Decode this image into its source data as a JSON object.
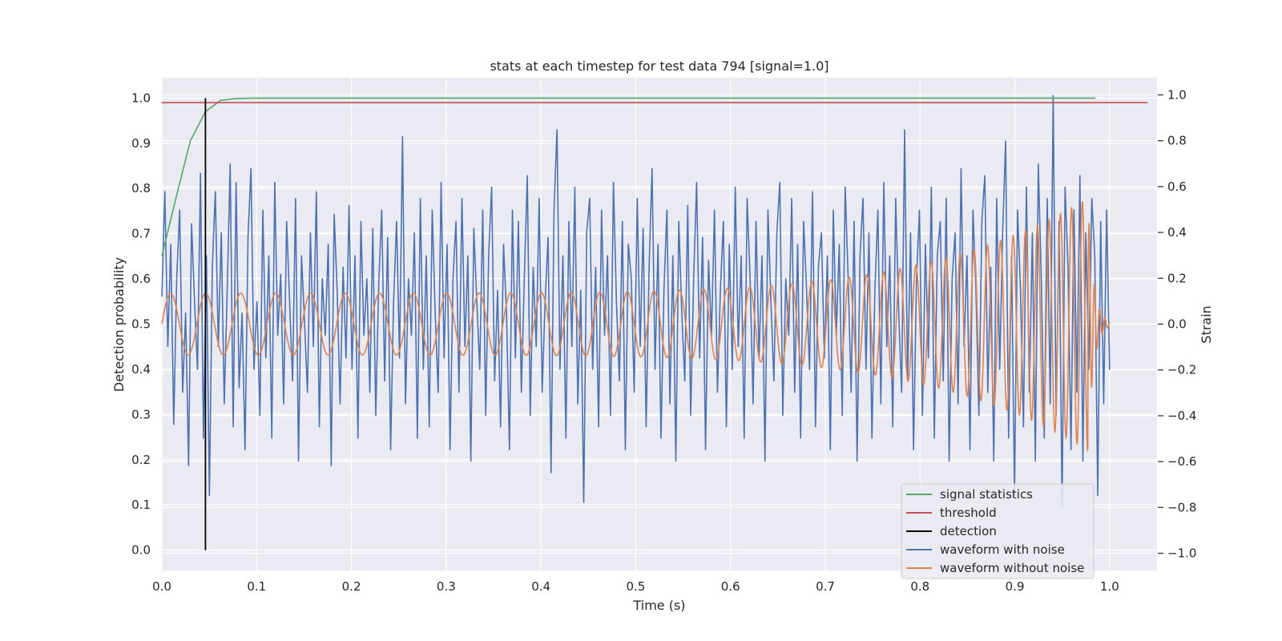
{
  "chart_data": {
    "type": "line",
    "title": "stats at each timestep for test data 794 [signal=1.0]",
    "xlabel": "Time (s)",
    "ylabel": "Detection probability",
    "y2label": "Strain",
    "xlim": [
      0.0,
      1.05
    ],
    "ylim": [
      -0.045,
      1.045
    ],
    "y2lim": [
      -1.075,
      1.075
    ],
    "grid": true,
    "legend_position": "lower right",
    "x_ticks": [
      "0.0",
      "0.1",
      "0.2",
      "0.3",
      "0.4",
      "0.5",
      "0.6",
      "0.7",
      "0.8",
      "0.9",
      "1.0"
    ],
    "y_ticks": [
      "0.0",
      "0.1",
      "0.2",
      "0.3",
      "0.4",
      "0.5",
      "0.6",
      "0.7",
      "0.8",
      "0.9",
      "1.0"
    ],
    "y2_ticks": [
      "−1.0",
      "−0.8",
      "−0.6",
      "−0.4",
      "−0.2",
      "0.0",
      "0.2",
      "0.4",
      "0.6",
      "0.8",
      "1.0"
    ],
    "series": [
      {
        "name": "signal statistics",
        "axis": "left",
        "color": "#55a868",
        "x": [
          0.0,
          0.015,
          0.03,
          0.046,
          0.062,
          0.078,
          0.1,
          0.2,
          0.3,
          0.4,
          0.5,
          0.6,
          0.7,
          0.8,
          0.9,
          0.985
        ],
        "y": [
          0.65,
          0.78,
          0.905,
          0.97,
          0.995,
          0.999,
          1.0,
          1.0,
          1.0,
          1.0,
          1.0,
          1.0,
          1.0,
          1.0,
          1.0,
          1.0
        ]
      },
      {
        "name": "threshold",
        "axis": "left",
        "color": "#c44e52",
        "x": [
          0.0,
          1.04
        ],
        "y": [
          0.99,
          0.99
        ]
      },
      {
        "name": "detection",
        "axis": "left",
        "color": "#000000",
        "x": [
          0.046,
          0.046
        ],
        "y": [
          0.0,
          1.0
        ]
      },
      {
        "name": "waveform with noise",
        "axis": "right",
        "color": "#4c72b0",
        "x_start": 0.0,
        "x_end": 1.0,
        "samples": 320,
        "amplitude_range": [
          -0.82,
          1.0
        ],
        "y": [
          0.12,
          0.58,
          -0.1,
          0.35,
          -0.44,
          0.2,
          0.5,
          -0.3,
          0.05,
          -0.62,
          0.44,
          0.1,
          -0.2,
          0.66,
          -0.5,
          0.3,
          -0.75,
          0.25,
          0.58,
          -0.1,
          0.4,
          -0.35,
          0.15,
          0.7,
          -0.45,
          0.62,
          -0.28,
          0.05,
          -0.55,
          0.38,
          0.68,
          -0.2,
          0.1,
          -0.4,
          0.5,
          -0.15,
          0.3,
          -0.5,
          0.62,
          -0.05,
          0.22,
          -0.35,
          0.45,
          0.1,
          -0.25,
          0.55,
          -0.6,
          0.3,
          0.02,
          -0.3,
          0.4,
          -0.1,
          0.58,
          -0.45,
          0.2,
          -0.05,
          0.35,
          -0.62,
          0.48,
          0.15,
          -0.35,
          0.25,
          -0.15,
          0.52,
          -0.2,
          0.3,
          -0.5,
          0.45,
          -0.05,
          0.2,
          -0.3,
          0.42,
          -0.4,
          0.18,
          0.5,
          -0.25,
          0.38,
          -0.55,
          0.1,
          0.45,
          -0.15,
          0.82,
          -0.35,
          0.2,
          -0.05,
          0.4,
          -0.5,
          0.55,
          -0.2,
          0.3,
          -0.45,
          0.5,
          0.05,
          -0.3,
          0.62,
          -0.15,
          0.35,
          -0.55,
          0.2,
          0.45,
          -0.3,
          0.55,
          -0.1,
          0.3,
          -0.6,
          0.42,
          0.1,
          -0.2,
          0.5,
          -0.4,
          0.3,
          0.6,
          -0.25,
          0.15,
          -0.45,
          0.35,
          0.05,
          -0.55,
          0.5,
          -0.15,
          0.45,
          -0.3,
          0.2,
          0.65,
          -0.4,
          0.25,
          -0.1,
          0.55,
          -0.3,
          0.1,
          0.38,
          -0.65,
          0.5,
          0.85,
          -0.2,
          0.3,
          -0.5,
          0.45,
          -0.1,
          0.6,
          -0.35,
          0.15,
          -0.78,
          0.4,
          0.55,
          -0.2,
          0.25,
          -0.45,
          0.5,
          -0.05,
          0.3,
          -0.4,
          0.62,
          0.1,
          -0.25,
          0.45,
          -0.55,
          0.35,
          0.2,
          -0.3,
          0.55,
          -0.1,
          0.42,
          -0.45,
          0.25,
          0.68,
          -0.2,
          0.35,
          -0.5,
          0.15,
          0.5,
          -0.35,
          0.3,
          -0.6,
          0.45,
          0.05,
          -0.25,
          0.52,
          -0.4,
          0.2,
          0.62,
          -0.15,
          0.38,
          -0.55,
          0.28,
          -0.05,
          0.5,
          -0.3,
          0.15,
          0.45,
          -0.45,
          0.35,
          -0.2,
          0.6,
          -0.1,
          0.3,
          -0.5,
          0.55,
          0.2,
          -0.35,
          0.45,
          -0.15,
          0.3,
          -0.6,
          0.5,
          0.1,
          -0.25,
          0.4,
          0.62,
          -0.4,
          0.2,
          -0.05,
          0.55,
          -0.3,
          0.35,
          -0.5,
          0.45,
          0.15,
          -0.2,
          0.58,
          -0.45,
          0.25,
          0.4,
          -0.15,
          0.3,
          -0.55,
          0.5,
          -0.05,
          0.35,
          -0.4,
          0.6,
          0.2,
          -0.3,
          0.45,
          -0.6,
          0.3,
          0.55,
          -0.2,
          0.4,
          -0.5,
          0.15,
          0.5,
          -0.35,
          0.62,
          -0.1,
          0.3,
          -0.45,
          0.55,
          0.05,
          -0.3,
          0.85,
          -0.25,
          0.4,
          -0.55,
          0.2,
          0.5,
          -0.4,
          0.35,
          -0.15,
          0.6,
          -0.5,
          0.3,
          0.45,
          -0.25,
          0.55,
          -0.6,
          0.2,
          0.4,
          -0.35,
          0.68,
          -0.1,
          0.3,
          -0.55,
          0.5,
          0.15,
          -0.4,
          0.45,
          0.65,
          -0.3,
          0.25,
          -0.6,
          0.55,
          -0.2,
          0.4,
          0.8,
          -0.5,
          0.3,
          -0.75,
          0.5,
          0.15,
          -0.45,
          0.6,
          -0.3,
          0.4,
          -0.6,
          0.7,
          0.2,
          -0.5,
          0.55,
          -0.35,
          1.0,
          -0.4,
          0.45,
          -0.8,
          0.6,
          0.25,
          -0.55,
          0.5,
          -0.3,
          0.65,
          -0.6,
          0.4,
          -0.2,
          0.55,
          0.3,
          -0.75,
          0.45,
          -0.35,
          0.5,
          -0.2
        ]
      },
      {
        "name": "waveform without noise",
        "axis": "right",
        "color": "#dd8452",
        "x_start": 0.0,
        "x_end": 1.0,
        "chirp_start_freq_hz": 27,
        "chirp_end_freq_hz": 90,
        "merger_time_s": 0.977,
        "amplitude_start": 0.135,
        "amplitude_peak": 0.55,
        "post_merger_value": 0.0
      }
    ]
  },
  "legend": {
    "items": [
      {
        "label": "signal statistics",
        "color": "#55a868"
      },
      {
        "label": "threshold",
        "color": "#c44e52"
      },
      {
        "label": "detection",
        "color": "#000000"
      },
      {
        "label": "waveform with noise",
        "color": "#4c72b0"
      },
      {
        "label": "waveform without noise",
        "color": "#dd8452"
      }
    ]
  },
  "colors": {
    "plot_background": "#eaeaf2",
    "grid": "#ffffff",
    "text": "#262626"
  }
}
